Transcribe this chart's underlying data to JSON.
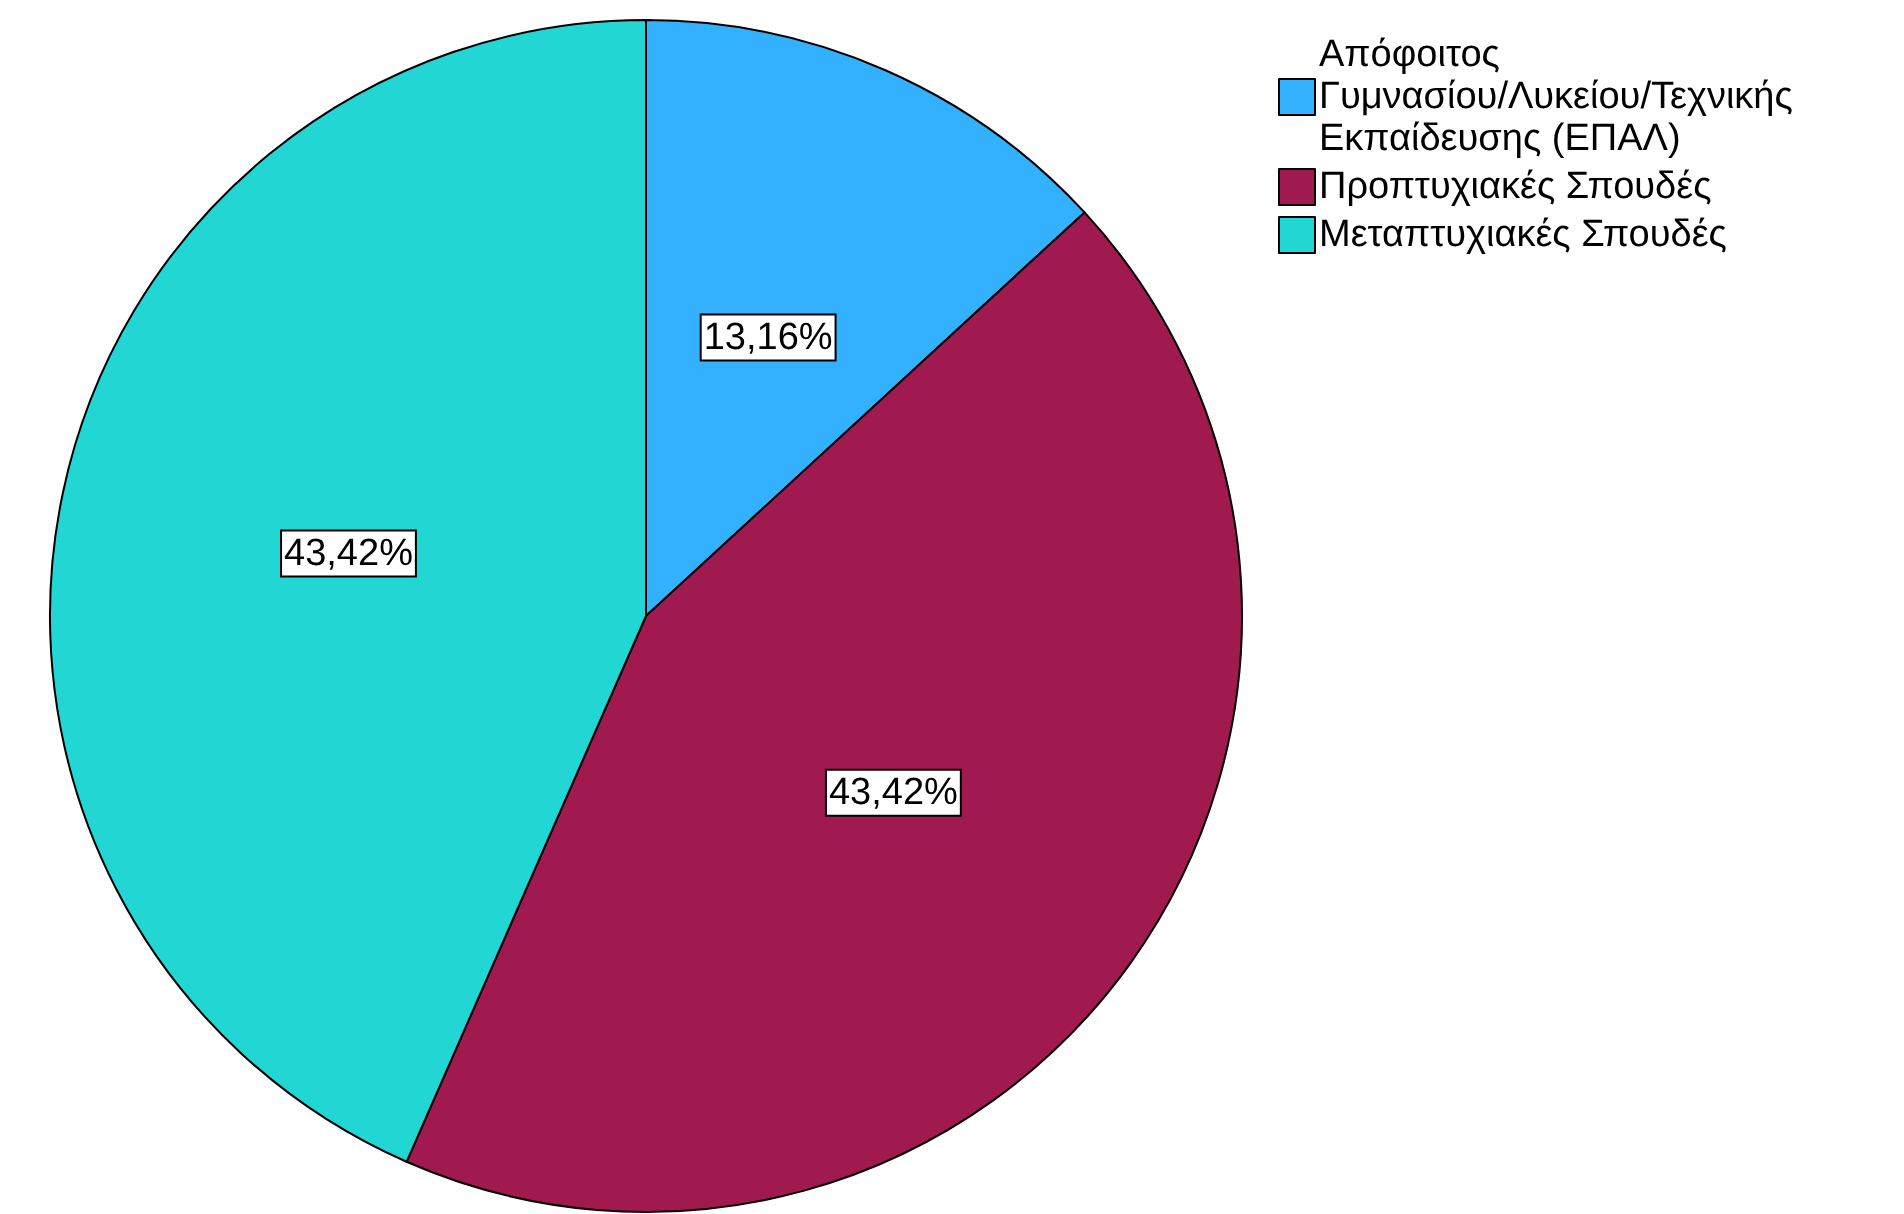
{
  "chart_data": {
    "type": "pie",
    "categories": [
      "Απόφοιτος Γυμνασίου/Λυκείου/Τεχνικής Εκπαίδευσης (ΕΠΑΛ)",
      "Προπτυχιακές Σπουδές",
      "Μεταπτυχιακές Σπουδές"
    ],
    "values": [
      13.16,
      43.42,
      43.42
    ],
    "value_labels": [
      "13,16%",
      "43,42%",
      "43,42%"
    ],
    "colors": [
      "#33b1ff",
      "#a0194f",
      "#22d6d4"
    ],
    "legend": "top right"
  }
}
